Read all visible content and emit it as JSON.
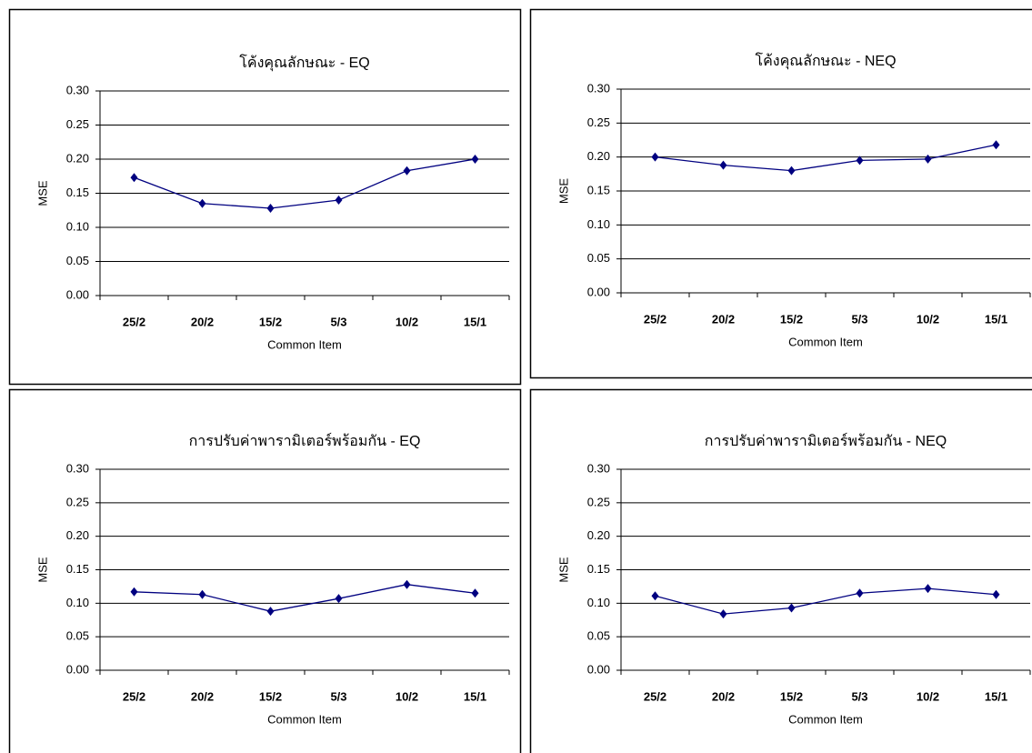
{
  "chart_data": [
    {
      "type": "line",
      "title": "โค้งคุณลักษณะ - EQ",
      "x_label": "Common Item",
      "y_label": "MSE",
      "categories": [
        "25/2",
        "20/2",
        "15/2",
        "5/3",
        "10/2",
        "15/1"
      ],
      "values": [
        0.173,
        0.135,
        0.128,
        0.14,
        0.183,
        0.2
      ],
      "color": "#000080",
      "ylim": [
        0,
        0.3
      ],
      "yticks": [
        {
          "value": 0,
          "label": "0.00"
        },
        {
          "value": 0.05,
          "label": "0.05"
        },
        {
          "value": 0.1,
          "label": "0.10"
        },
        {
          "value": 0.15,
          "label": "0.15"
        },
        {
          "value": 0.2,
          "label": "0.20"
        },
        {
          "value": 0.25,
          "label": "0.25"
        },
        {
          "value": 0.3,
          "label": "0.30"
        }
      ],
      "grid": true
    },
    {
      "type": "line",
      "title": "โค้งคุณลักษณะ - NEQ",
      "x_label": "Common Item",
      "y_label": "MSE",
      "categories": [
        "25/2",
        "20/2",
        "15/2",
        "5/3",
        "10/2",
        "15/1"
      ],
      "values": [
        0.2,
        0.188,
        0.18,
        0.195,
        0.197,
        0.218
      ],
      "color": "#000080",
      "ylim": [
        0,
        0.3
      ],
      "yticks": [
        {
          "value": 0,
          "label": "0.00"
        },
        {
          "value": 0.05,
          "label": "0.05"
        },
        {
          "value": 0.1,
          "label": "0.10"
        },
        {
          "value": 0.15,
          "label": "0.15"
        },
        {
          "value": 0.2,
          "label": "0.20"
        },
        {
          "value": 0.25,
          "label": "0.25"
        },
        {
          "value": 0.3,
          "label": "0.30"
        }
      ],
      "grid": true
    },
    {
      "type": "line",
      "title": "การปรับค่าพารามิเตอร์พร้อมกัน - EQ",
      "x_label": "Common Item",
      "y_label": "MSE",
      "categories": [
        "25/2",
        "20/2",
        "15/2",
        "5/3",
        "10/2",
        "15/1"
      ],
      "values": [
        0.117,
        0.113,
        0.088,
        0.107,
        0.128,
        0.115
      ],
      "color": "#000080",
      "ylim": [
        0,
        0.3
      ],
      "yticks": [
        {
          "value": 0,
          "label": "0.00"
        },
        {
          "value": 0.05,
          "label": "0.05"
        },
        {
          "value": 0.1,
          "label": "0.10"
        },
        {
          "value": 0.15,
          "label": "0.15"
        },
        {
          "value": 0.2,
          "label": "0.20"
        },
        {
          "value": 0.25,
          "label": "0.25"
        },
        {
          "value": 0.3,
          "label": "0.30"
        }
      ],
      "grid": true
    },
    {
      "type": "line",
      "title": "การปรับค่าพารามิเตอร์พร้อมกัน - NEQ",
      "x_label": "Common Item",
      "y_label": "MSE",
      "categories": [
        "25/2",
        "20/2",
        "15/2",
        "5/3",
        "10/2",
        "15/1"
      ],
      "values": [
        0.111,
        0.084,
        0.093,
        0.115,
        0.122,
        0.113
      ],
      "color": "#000080",
      "ylim": [
        0,
        0.3
      ],
      "yticks": [
        {
          "value": 0,
          "label": "0.00"
        },
        {
          "value": 0.05,
          "label": "0.05"
        },
        {
          "value": 0.1,
          "label": "0.10"
        },
        {
          "value": 0.15,
          "label": "0.15"
        },
        {
          "value": 0.2,
          "label": "0.20"
        },
        {
          "value": 0.25,
          "label": "0.25"
        },
        {
          "value": 0.3,
          "label": "0.30"
        }
      ],
      "grid": true
    }
  ]
}
